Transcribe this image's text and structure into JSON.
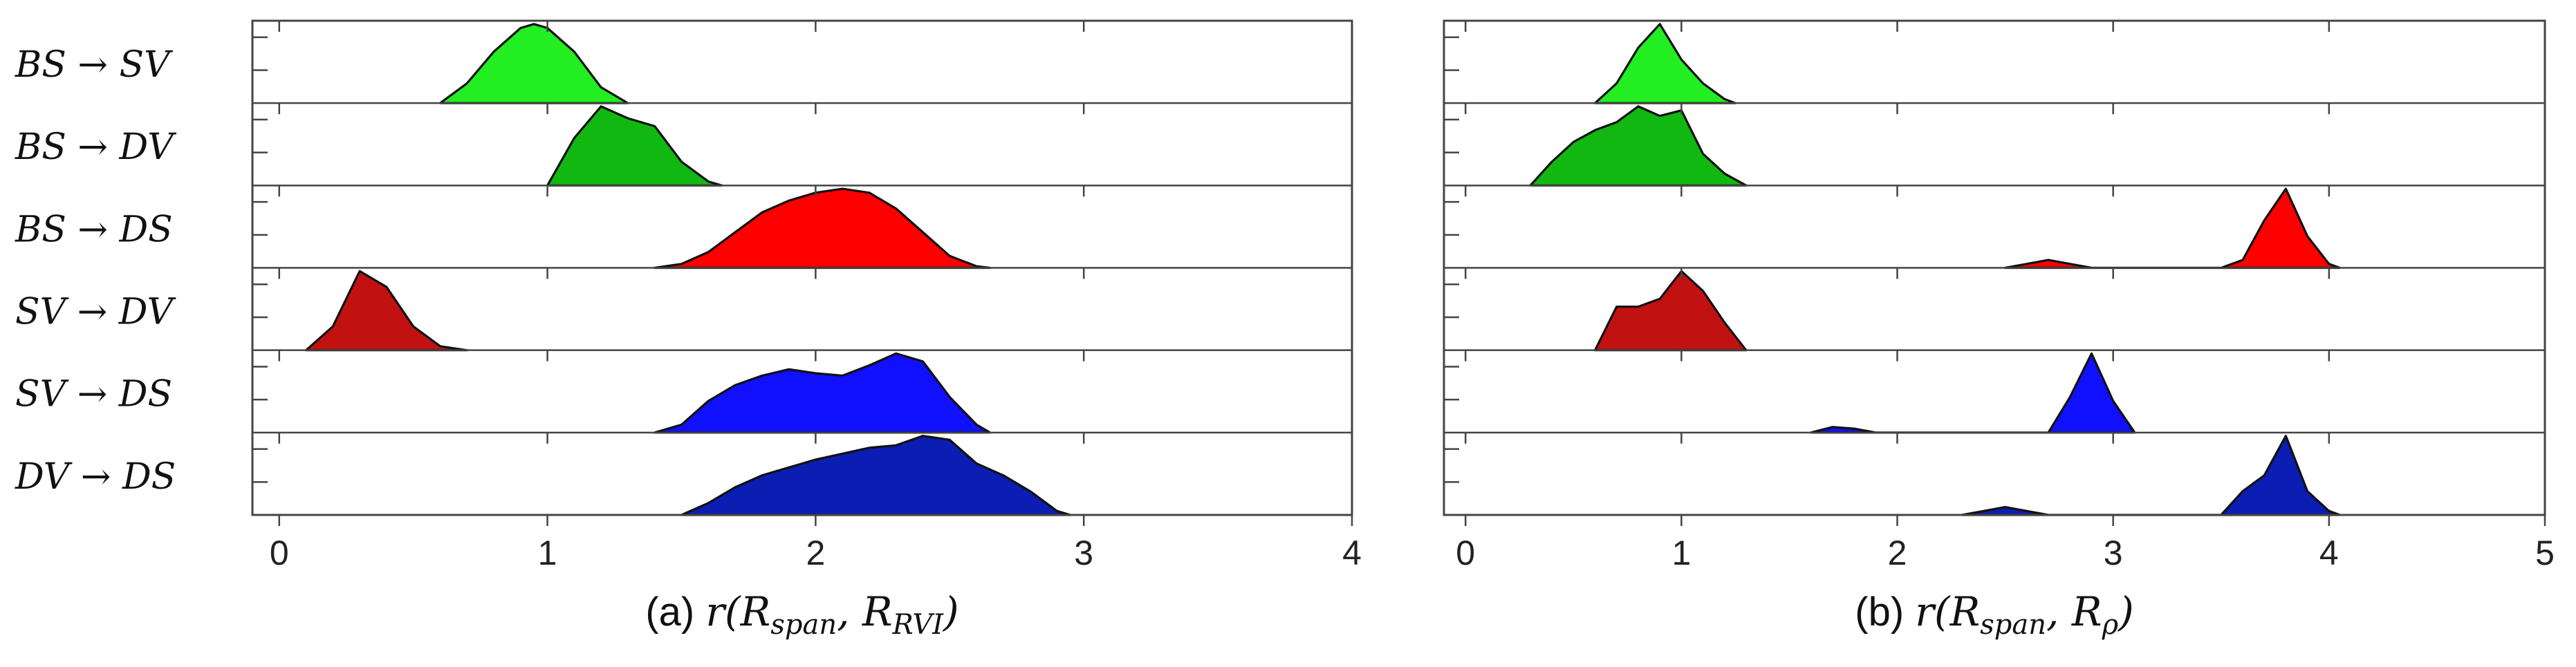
{
  "chart_data": [
    {
      "type": "area",
      "caption": "(a) r(R_span, R_RVI)",
      "caption_prefix": "(a) ",
      "caption_formula": "r(Rspan, RRVI)",
      "xlim": [
        -0.1,
        4
      ],
      "xticks": [
        "0",
        "1",
        "2",
        "3",
        "4"
      ],
      "series": [
        {
          "name": "BS → SV",
          "color": "#22ee22",
          "points": [
            [
              0.6,
              0
            ],
            [
              0.7,
              0.25
            ],
            [
              0.8,
              0.65
            ],
            [
              0.9,
              0.95
            ],
            [
              0.95,
              1.0
            ],
            [
              1.0,
              0.95
            ],
            [
              1.1,
              0.65
            ],
            [
              1.2,
              0.2
            ],
            [
              1.3,
              0
            ]
          ]
        },
        {
          "name": "BS → DV",
          "color": "#11b811",
          "points": [
            [
              1.0,
              0
            ],
            [
              1.1,
              0.6
            ],
            [
              1.2,
              1.0
            ],
            [
              1.3,
              0.85
            ],
            [
              1.4,
              0.75
            ],
            [
              1.5,
              0.3
            ],
            [
              1.6,
              0.05
            ],
            [
              1.65,
              0
            ]
          ]
        },
        {
          "name": "BS → DS",
          "color": "#ff0000",
          "points": [
            [
              1.4,
              0
            ],
            [
              1.5,
              0.05
            ],
            [
              1.6,
              0.2
            ],
            [
              1.7,
              0.45
            ],
            [
              1.8,
              0.7
            ],
            [
              1.9,
              0.85
            ],
            [
              2.0,
              0.95
            ],
            [
              2.1,
              1.0
            ],
            [
              2.2,
              0.95
            ],
            [
              2.3,
              0.75
            ],
            [
              2.4,
              0.45
            ],
            [
              2.5,
              0.15
            ],
            [
              2.6,
              0.02
            ],
            [
              2.65,
              0
            ]
          ]
        },
        {
          "name": "SV → DV",
          "color": "#c21111",
          "points": [
            [
              0.1,
              0
            ],
            [
              0.2,
              0.3
            ],
            [
              0.3,
              1.0
            ],
            [
              0.4,
              0.8
            ],
            [
              0.5,
              0.3
            ],
            [
              0.6,
              0.05
            ],
            [
              0.7,
              0
            ]
          ]
        },
        {
          "name": "SV → DS",
          "color": "#1010ff",
          "points": [
            [
              1.4,
              0
            ],
            [
              1.5,
              0.1
            ],
            [
              1.6,
              0.4
            ],
            [
              1.7,
              0.6
            ],
            [
              1.8,
              0.72
            ],
            [
              1.9,
              0.8
            ],
            [
              2.0,
              0.75
            ],
            [
              2.1,
              0.72
            ],
            [
              2.2,
              0.85
            ],
            [
              2.3,
              1.0
            ],
            [
              2.4,
              0.9
            ],
            [
              2.5,
              0.45
            ],
            [
              2.6,
              0.1
            ],
            [
              2.65,
              0
            ]
          ]
        },
        {
          "name": "DV → DS",
          "color": "#0c1db3",
          "points": [
            [
              1.5,
              0
            ],
            [
              1.6,
              0.15
            ],
            [
              1.7,
              0.35
            ],
            [
              1.8,
              0.5
            ],
            [
              2.0,
              0.7
            ],
            [
              2.2,
              0.85
            ],
            [
              2.3,
              0.88
            ],
            [
              2.4,
              1.0
            ],
            [
              2.5,
              0.95
            ],
            [
              2.6,
              0.65
            ],
            [
              2.7,
              0.5
            ],
            [
              2.8,
              0.3
            ],
            [
              2.9,
              0.05
            ],
            [
              2.95,
              0
            ]
          ]
        }
      ]
    },
    {
      "type": "area",
      "caption": "(b) r(R_span, R_ρ)",
      "caption_prefix": "(b) ",
      "caption_formula": "r(Rspan, Rρ)",
      "xlim": [
        -0.1,
        5
      ],
      "xticks": [
        "0",
        "1",
        "2",
        "3",
        "4",
        "5"
      ],
      "series": [
        {
          "name": "BS → SV",
          "color": "#22ee22",
          "points": [
            [
              0.6,
              0
            ],
            [
              0.7,
              0.25
            ],
            [
              0.8,
              0.7
            ],
            [
              0.9,
              1.0
            ],
            [
              1.0,
              0.55
            ],
            [
              1.1,
              0.25
            ],
            [
              1.2,
              0.05
            ],
            [
              1.25,
              0
            ]
          ]
        },
        {
          "name": "BS → DV",
          "color": "#11b811",
          "points": [
            [
              0.3,
              0
            ],
            [
              0.4,
              0.3
            ],
            [
              0.5,
              0.55
            ],
            [
              0.6,
              0.7
            ],
            [
              0.7,
              0.8
            ],
            [
              0.8,
              1.0
            ],
            [
              0.9,
              0.88
            ],
            [
              1.0,
              0.95
            ],
            [
              1.1,
              0.4
            ],
            [
              1.2,
              0.15
            ],
            [
              1.3,
              0
            ]
          ]
        },
        {
          "name": "BS → DS",
          "color": "#ff0000",
          "points": [
            [
              2.5,
              0
            ],
            [
              2.6,
              0.05
            ],
            [
              2.7,
              0.1
            ],
            [
              2.8,
              0.05
            ],
            [
              2.9,
              0
            ],
            [
              3.5,
              0
            ],
            [
              3.6,
              0.1
            ],
            [
              3.7,
              0.6
            ],
            [
              3.8,
              1.0
            ],
            [
              3.9,
              0.4
            ],
            [
              4.0,
              0.05
            ],
            [
              4.05,
              0
            ]
          ]
        },
        {
          "name": "SV → DV",
          "color": "#c21111",
          "points": [
            [
              0.6,
              0
            ],
            [
              0.7,
              0.55
            ],
            [
              0.8,
              0.55
            ],
            [
              0.9,
              0.65
            ],
            [
              1.0,
              1.0
            ],
            [
              1.1,
              0.75
            ],
            [
              1.2,
              0.35
            ],
            [
              1.3,
              0
            ]
          ]
        },
        {
          "name": "SV → DS",
          "color": "#1010ff",
          "points": [
            [
              1.6,
              0
            ],
            [
              1.7,
              0.07
            ],
            [
              1.8,
              0.05
            ],
            [
              1.9,
              0
            ],
            [
              2.7,
              0
            ],
            [
              2.8,
              0.45
            ],
            [
              2.9,
              1.0
            ],
            [
              3.0,
              0.4
            ],
            [
              3.1,
              0
            ]
          ]
        },
        {
          "name": "DV → DS",
          "color": "#0c1db3",
          "points": [
            [
              2.3,
              0
            ],
            [
              2.4,
              0.05
            ],
            [
              2.5,
              0.1
            ],
            [
              2.6,
              0.05
            ],
            [
              2.7,
              0
            ],
            [
              3.5,
              0
            ],
            [
              3.6,
              0.3
            ],
            [
              3.7,
              0.5
            ],
            [
              3.8,
              1.0
            ],
            [
              3.9,
              0.3
            ],
            [
              4.0,
              0.05
            ],
            [
              4.05,
              0
            ]
          ]
        }
      ]
    }
  ]
}
